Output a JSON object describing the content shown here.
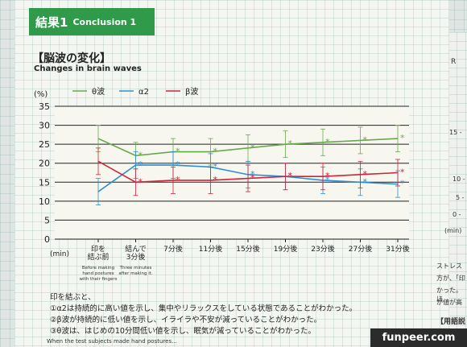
{
  "banner": {
    "jp": "結果1",
    "en": "Conclusion 1"
  },
  "heading": {
    "jp": "【脳波の変化】",
    "en": "Changes in brain waves"
  },
  "chart_data": {
    "type": "line",
    "ylabel": "(%)",
    "xlabel": "(min)",
    "ylim": [
      0,
      35
    ],
    "yticks": [
      0,
      5,
      10,
      15,
      20,
      25,
      30,
      35
    ],
    "categories": [
      "印を結ぶ前",
      "結んで3分後",
      "7分後",
      "11分後",
      "15分後",
      "19分後",
      "23分後",
      "27分後",
      "31分後"
    ],
    "category_notes": [
      "Before making hand postures with their fingers",
      "Three minutes after making it",
      "",
      "",
      "",
      "",
      "",
      "",
      ""
    ],
    "legend": "top",
    "series": [
      {
        "name": "θ波",
        "color": "#6aa84f",
        "values": [
          26.5,
          22,
          23,
          23,
          24,
          25,
          25.5,
          26,
          26.5
        ]
      },
      {
        "name": "α2",
        "color": "#2f8fd0",
        "values": [
          12.5,
          19.5,
          19.5,
          19,
          17,
          16.5,
          15.5,
          15,
          14.5
        ]
      },
      {
        "name": "β波",
        "color": "#d0243a",
        "values": [
          20.5,
          15,
          15.5,
          15.5,
          16,
          16.5,
          16.5,
          17,
          17.5
        ]
      }
    ]
  },
  "notes": {
    "intro": "印を結ぶと、",
    "line1": "①α2は持続的に高い値を示し、集中やリラックスをしている状態であることがわかった。",
    "line2": "②β波が持続的に低い値を示し、イライラや不安が減っていることがわかった。",
    "line3": "③θ波は、はじめの10分間低い値を示し、眠気が減っていることがわかった。"
  },
  "footer": "When the test subjects made hand postures...",
  "side": {
    "unit": "(min)",
    "t1": "ストレス",
    "t2": "方が、「印",
    "t3": "かった。ほ",
    "t4": "が値が高",
    "t5": "【用語説",
    "ticks": [
      "15 -",
      "10 -",
      "5 -",
      "0 -"
    ]
  },
  "watermark": "funpeer.com"
}
